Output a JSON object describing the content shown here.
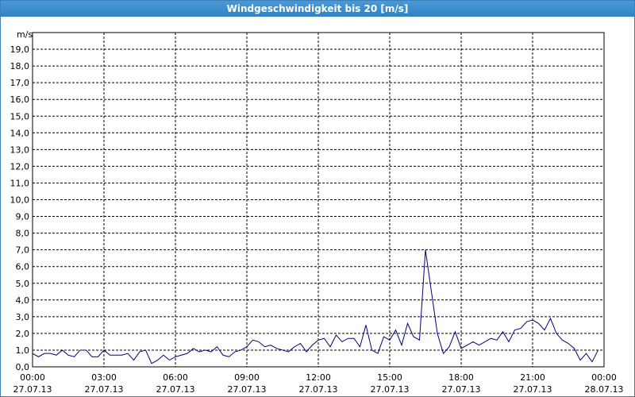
{
  "chart_data": {
    "type": "line",
    "title": "Windgeschwindigkeit bis 20 [m/s]",
    "ylabel": "m/s",
    "x": [
      0,
      0.25,
      0.5,
      0.75,
      1,
      1.25,
      1.5,
      1.75,
      2,
      2.25,
      2.5,
      2.75,
      3,
      3.25,
      3.5,
      3.75,
      4,
      4.25,
      4.5,
      4.75,
      5,
      5.25,
      5.5,
      5.75,
      6,
      6.25,
      6.5,
      6.75,
      7,
      7.25,
      7.5,
      7.75,
      8,
      8.25,
      8.5,
      8.75,
      9,
      9.25,
      9.5,
      9.75,
      10,
      10.25,
      10.5,
      10.75,
      11,
      11.25,
      11.5,
      11.75,
      12,
      12.25,
      12.5,
      12.75,
      13,
      13.25,
      13.5,
      13.75,
      14,
      14.25,
      14.5,
      14.75,
      15,
      15.25,
      15.5,
      15.75,
      16,
      16.25,
      16.5,
      16.75,
      17,
      17.25,
      17.5,
      17.75,
      18,
      18.25,
      18.5,
      18.75,
      19,
      19.25,
      19.5,
      19.75,
      20,
      20.25,
      20.5,
      20.75,
      21,
      21.25,
      21.5,
      21.75,
      22,
      22.25,
      22.5,
      22.75,
      23,
      23.25,
      23.5,
      23.75
    ],
    "series": [
      {
        "color": "#000080",
        "values": [
          0.8,
          0.6,
          0.8,
          0.8,
          0.7,
          1.0,
          0.7,
          0.6,
          1.0,
          1.0,
          0.6,
          0.6,
          1.0,
          0.7,
          0.7,
          0.7,
          0.8,
          0.4,
          0.9,
          1.0,
          0.2,
          0.4,
          0.7,
          0.4,
          0.6,
          0.7,
          0.8,
          1.1,
          0.9,
          1.0,
          0.9,
          1.2,
          0.7,
          0.6,
          0.9,
          1.0,
          1.2,
          1.6,
          1.5,
          1.2,
          1.3,
          1.1,
          1.0,
          0.9,
          1.2,
          1.4,
          0.9,
          1.3,
          1.6,
          1.7,
          1.2,
          1.9,
          1.5,
          1.7,
          1.7,
          1.2,
          2.5,
          1.0,
          0.8,
          1.8,
          1.6,
          2.2,
          1.3,
          2.6,
          1.8,
          1.6,
          7.0,
          4.5,
          2.0,
          0.8,
          1.2,
          2.1,
          1.1,
          1.3,
          1.5,
          1.3,
          1.5,
          1.7,
          1.6,
          2.1,
          1.5,
          2.2,
          2.3,
          2.7,
          2.8,
          2.6,
          2.2,
          2.9,
          2.0,
          1.6,
          1.4,
          1.1,
          0.4,
          0.8,
          0.3,
          1.0
        ]
      }
    ],
    "xlim": [
      0,
      24
    ],
    "xticks": [
      {
        "value": 0,
        "label": "00:00"
      },
      {
        "value": 3,
        "label": "03:00"
      },
      {
        "value": 6,
        "label": "06:00"
      },
      {
        "value": 9,
        "label": "09:00"
      },
      {
        "value": 12,
        "label": "12:00"
      },
      {
        "value": 15,
        "label": "15:00"
      },
      {
        "value": 18,
        "label": "18:00"
      },
      {
        "value": 21,
        "label": "21:00"
      },
      {
        "value": 24,
        "label": "00:00"
      }
    ],
    "xtick_dates": [
      "27.07.13",
      "27.07.13",
      "27.07.13",
      "27.07.13",
      "27.07.13",
      "27.07.13",
      "27.07.13",
      "27.07.13",
      "28.07.13"
    ],
    "ylim": [
      0,
      20
    ],
    "yticks": [
      {
        "value": 0,
        "label": "0,0"
      },
      {
        "value": 1,
        "label": "1,0"
      },
      {
        "value": 2,
        "label": "2,0"
      },
      {
        "value": 3,
        "label": "3,0"
      },
      {
        "value": 4,
        "label": "4,0"
      },
      {
        "value": 5,
        "label": "5,0"
      },
      {
        "value": 6,
        "label": "6,0"
      },
      {
        "value": 7,
        "label": "7,0"
      },
      {
        "value": 8,
        "label": "8,0"
      },
      {
        "value": 9,
        "label": "9,0"
      },
      {
        "value": 10,
        "label": "10,0"
      },
      {
        "value": 11,
        "label": "11,0"
      },
      {
        "value": 12,
        "label": "12,0"
      },
      {
        "value": 13,
        "label": "13,0"
      },
      {
        "value": 14,
        "label": "14,0"
      },
      {
        "value": 15,
        "label": "15,0"
      },
      {
        "value": 16,
        "label": "16,0"
      },
      {
        "value": 17,
        "label": "17,0"
      },
      {
        "value": 18,
        "label": "18,0"
      },
      {
        "value": 19,
        "label": "19,0"
      }
    ],
    "grid": true
  }
}
